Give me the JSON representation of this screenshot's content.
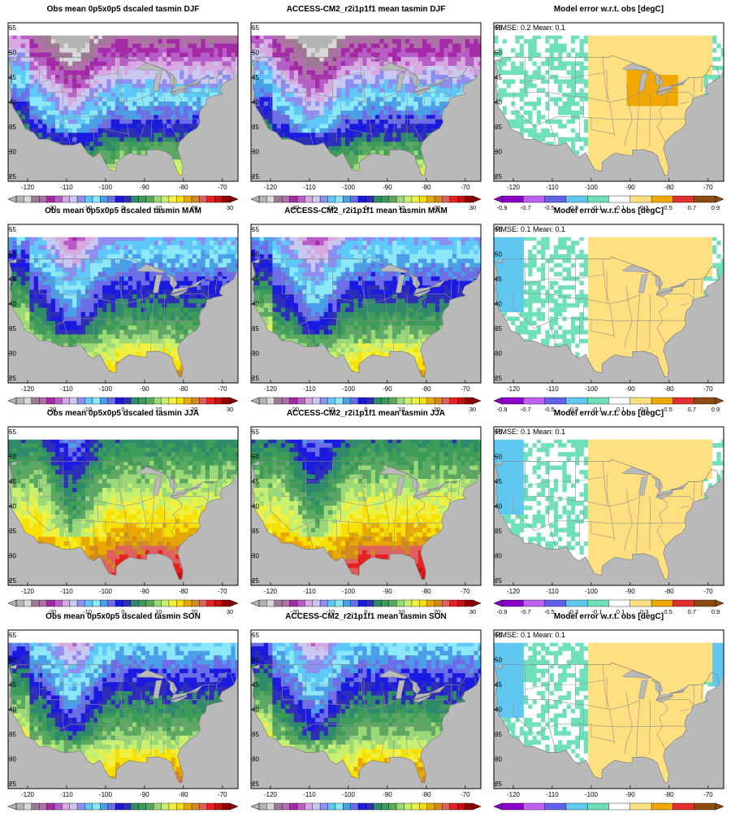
{
  "figure": {
    "rows": [
      {
        "season": "DJF",
        "panels": [
          {
            "title": "Obs mean 0p5x0p5 dscaled tasmin DJF",
            "kind": "temp"
          },
          {
            "title": "ACCESS-CM2_r2i1p1f1 mean tasmin DJF",
            "kind": "temp"
          },
          {
            "title": "Model error w.r.t. obs [degC]",
            "kind": "error",
            "stats": "RMSE: 0.2  Mean: 0.1"
          }
        ]
      },
      {
        "season": "MAM",
        "panels": [
          {
            "title": "Obs mean 0p5x0p5 dscaled tasmin MAM",
            "kind": "temp"
          },
          {
            "title": "ACCESS-CM2_r2i1p1f1 mean tasmin MAM",
            "kind": "temp"
          },
          {
            "title": "Model error w.r.t. obs [degC]",
            "kind": "error",
            "stats": "RMSE: 0.1  Mean: 0.1"
          }
        ]
      },
      {
        "season": "JJA",
        "panels": [
          {
            "title": "Obs mean 0p5x0p5 dscaled tasmin JJA",
            "kind": "temp"
          },
          {
            "title": "ACCESS-CM2_r2i1p1f1 mean tasmin JJA",
            "kind": "temp"
          },
          {
            "title": "Model error w.r.t. obs [degC]",
            "kind": "error",
            "stats": "RMSE: 0.1  Mean: 0.1"
          }
        ]
      },
      {
        "season": "SON",
        "panels": [
          {
            "title": "Obs mean 0p5x0p5 dscaled tasmin SON",
            "kind": "temp"
          },
          {
            "title": "ACCESS-CM2_r2i1p1f1 mean tasmin SON",
            "kind": "temp"
          },
          {
            "title": "Model error w.r.t. obs [degC]",
            "kind": "error",
            "stats": "RMSE: 0.1  Mean: 0.1"
          }
        ]
      }
    ]
  },
  "chart_data": {
    "type": "heatmap",
    "x_ticks": [
      "-120",
      "-110",
      "-100",
      "-90",
      "-80",
      "-70"
    ],
    "y_ticks": [
      "55",
      "50",
      "45",
      "40",
      "35",
      "30",
      "25"
    ],
    "xlim": [
      -125,
      -66
    ],
    "ylim": [
      24,
      56
    ],
    "temp_colorbar": {
      "tick_labels": [
        "-20",
        "-10",
        "0",
        "10",
        "20",
        "30"
      ],
      "range": [
        -30,
        30
      ],
      "colors": [
        "#b4b4b4",
        "#d8d8d8",
        "#9c7a94",
        "#b070a8",
        "#a42aa8",
        "#b85cc8",
        "#d8a8e0",
        "#c8c8f0",
        "#8e8ef0",
        "#5ec8f8",
        "#8ce8f8",
        "#4aa0e8",
        "#6d6de8",
        "#1a1ae0",
        "#2e2eb8",
        "#2e8a6a",
        "#3c9c58",
        "#5aa862",
        "#9ad878",
        "#c8f070",
        "#f0f040",
        "#f8e000",
        "#e8a800",
        "#d08a1e",
        "#e06060",
        "#e82020",
        "#c81010",
        "#900000"
      ]
    },
    "error_colorbar": {
      "tick_labels": [
        "-0.9",
        "-0.7",
        "-0.5",
        "-0.3",
        "-0.1",
        "0.1",
        "0.3",
        "0.5",
        "0.7",
        "0.9"
      ],
      "range": [
        -0.9,
        0.9
      ],
      "colors": [
        "#8a00c8",
        "#c060f0",
        "#6060e8",
        "#60c8f0",
        "#70e0b8",
        "#ffffff",
        "#ffe080",
        "#f0a800",
        "#e03030",
        "#8a4a10"
      ]
    },
    "map": {
      "ocean_color": "#b9b9b9",
      "country_border_color": "#808080",
      "state_border_color": "#909090"
    }
  }
}
